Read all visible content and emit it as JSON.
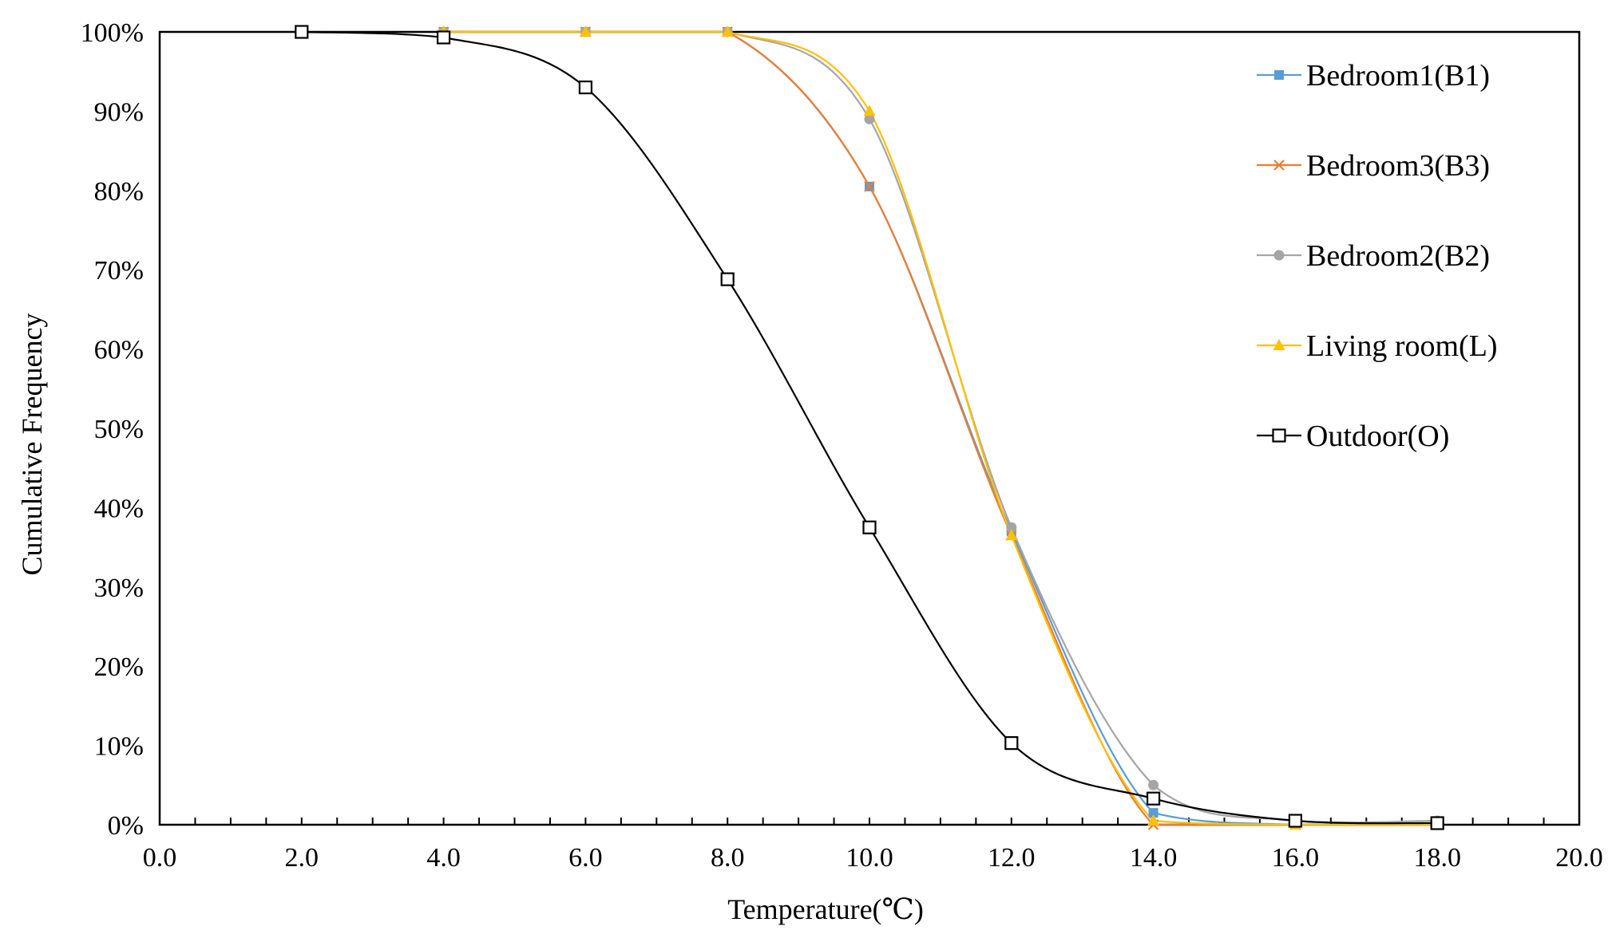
{
  "chart_data": {
    "type": "line",
    "title": "",
    "xlabel": "Temperature(℃)",
    "ylabel": "Cumulative Frequency",
    "xlim": [
      0,
      20
    ],
    "ylim": [
      0,
      100
    ],
    "x_ticks": [
      "0.0",
      "2.0",
      "4.0",
      "6.0",
      "8.0",
      "10.0",
      "12.0",
      "14.0",
      "16.0",
      "18.0",
      "20.0"
    ],
    "y_ticks": [
      "0%",
      "10%",
      "20%",
      "30%",
      "40%",
      "50%",
      "60%",
      "70%",
      "80%",
      "90%",
      "100%"
    ],
    "grid": false,
    "legend_position": "right",
    "series": [
      {
        "name": "Bedroom1(B1)",
        "color": "#5B9BD5",
        "marker": "square",
        "points": [
          [
            4,
            100
          ],
          [
            6,
            100
          ],
          [
            8,
            100
          ],
          [
            10,
            80.5
          ],
          [
            12,
            37
          ],
          [
            14,
            1.5
          ],
          [
            16,
            0
          ],
          [
            18,
            0
          ]
        ]
      },
      {
        "name": "Bedroom3(B3)",
        "color": "#ED7D31",
        "marker": "x",
        "points": [
          [
            4,
            100
          ],
          [
            6,
            100
          ],
          [
            8,
            100
          ],
          [
            10,
            80.5
          ],
          [
            12,
            36.5
          ],
          [
            14,
            0
          ],
          [
            16,
            0
          ],
          [
            18,
            0
          ]
        ]
      },
      {
        "name": "Bedroom2(B2)",
        "color": "#A5A5A5",
        "marker": "circle",
        "points": [
          [
            4,
            100
          ],
          [
            6,
            100
          ],
          [
            8,
            100
          ],
          [
            10,
            89
          ],
          [
            12,
            37.5
          ],
          [
            14,
            5
          ],
          [
            16,
            0.5
          ],
          [
            18,
            0.5
          ]
        ]
      },
      {
        "name": "Living room(L)",
        "color": "#FFC000",
        "marker": "triangle",
        "points": [
          [
            4,
            100
          ],
          [
            6,
            100
          ],
          [
            8,
            100
          ],
          [
            10,
            90
          ],
          [
            12,
            36.5
          ],
          [
            14,
            0.5
          ],
          [
            16,
            0
          ],
          [
            18,
            0
          ]
        ]
      },
      {
        "name": "Outdoor(O)",
        "color": "#000000",
        "marker": "open-square",
        "points": [
          [
            2,
            100
          ],
          [
            4,
            99.3
          ],
          [
            6,
            93
          ],
          [
            8,
            68.8
          ],
          [
            10,
            37.5
          ],
          [
            12,
            10.3
          ],
          [
            14,
            3.3
          ],
          [
            16,
            0.5
          ],
          [
            18,
            0.2
          ]
        ]
      }
    ]
  }
}
